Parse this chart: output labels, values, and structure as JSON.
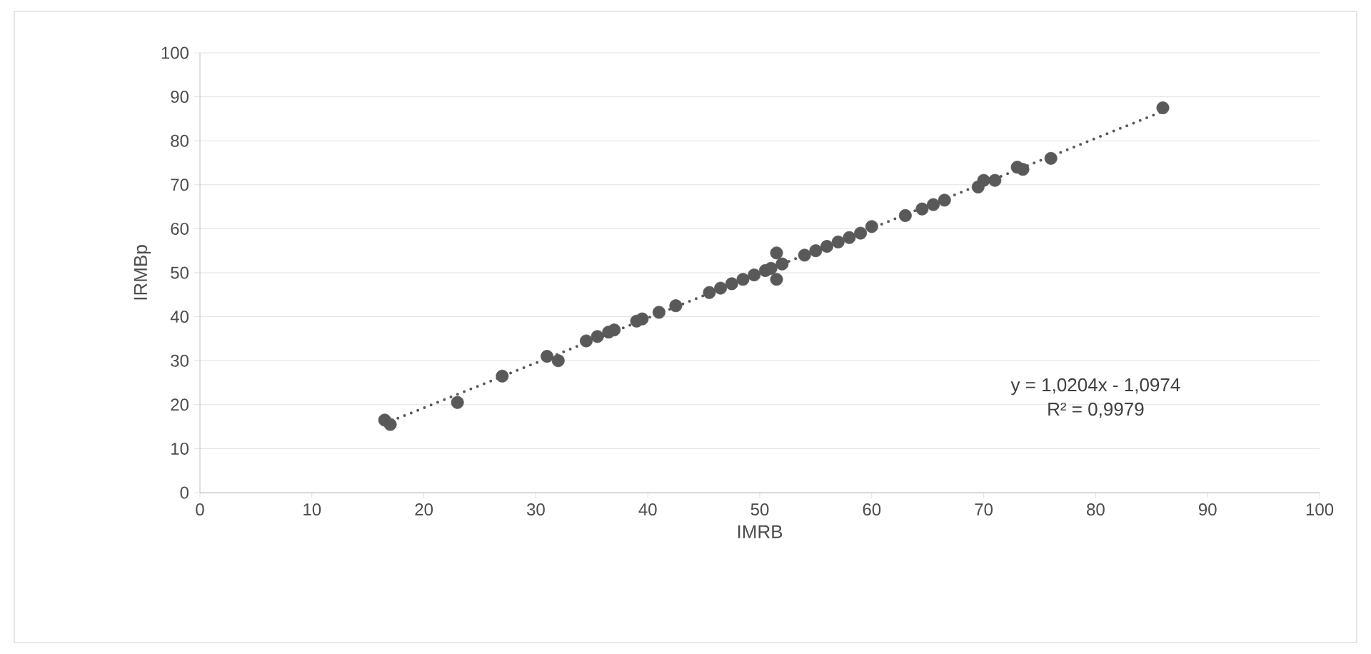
{
  "chart_data": {
    "type": "scatter",
    "xlabel": "IMRB",
    "ylabel": "IRMBp",
    "xlim": [
      0,
      100
    ],
    "ylim": [
      0,
      100
    ],
    "xticks": [
      0,
      10,
      20,
      30,
      40,
      50,
      60,
      70,
      80,
      90,
      100
    ],
    "yticks": [
      0,
      10,
      20,
      30,
      40,
      50,
      60,
      70,
      80,
      90,
      100
    ],
    "grid": "y",
    "marker": "circle",
    "series": [
      {
        "color": "#595959",
        "x": [
          16.5,
          17,
          23,
          27,
          31,
          32,
          34.5,
          35.5,
          36.5,
          37,
          39,
          39.5,
          41,
          42.5,
          45.5,
          46.5,
          47.5,
          48.5,
          49.5,
          50.5,
          51,
          51.5,
          51.5,
          52,
          54,
          55,
          56,
          57,
          58,
          59,
          60,
          63,
          64.5,
          65.5,
          66.5,
          69.5,
          70,
          71,
          73,
          73.5,
          76,
          86
        ],
        "values": [
          16.5,
          15.5,
          20.5,
          26.5,
          31,
          30,
          34.5,
          35.5,
          36.5,
          37,
          39,
          39.5,
          41,
          42.5,
          45.5,
          46.5,
          47.5,
          48.5,
          49.5,
          50.5,
          51,
          54.5,
          48.5,
          52,
          54,
          55,
          56,
          57,
          58,
          59,
          60.5,
          63,
          64.5,
          65.5,
          66.5,
          69.5,
          71,
          71,
          74,
          73.5,
          76,
          87.5
        ]
      },
      {
        "type": "line",
        "color": "#595959",
        "line_style": "dotted",
        "marker": "none",
        "x": [
          16.5,
          86
        ],
        "values": [
          15.7,
          86.7
        ]
      }
    ],
    "annotations": [
      "y = 1,0204x - 1,0974",
      "R² = 0,9979"
    ]
  }
}
